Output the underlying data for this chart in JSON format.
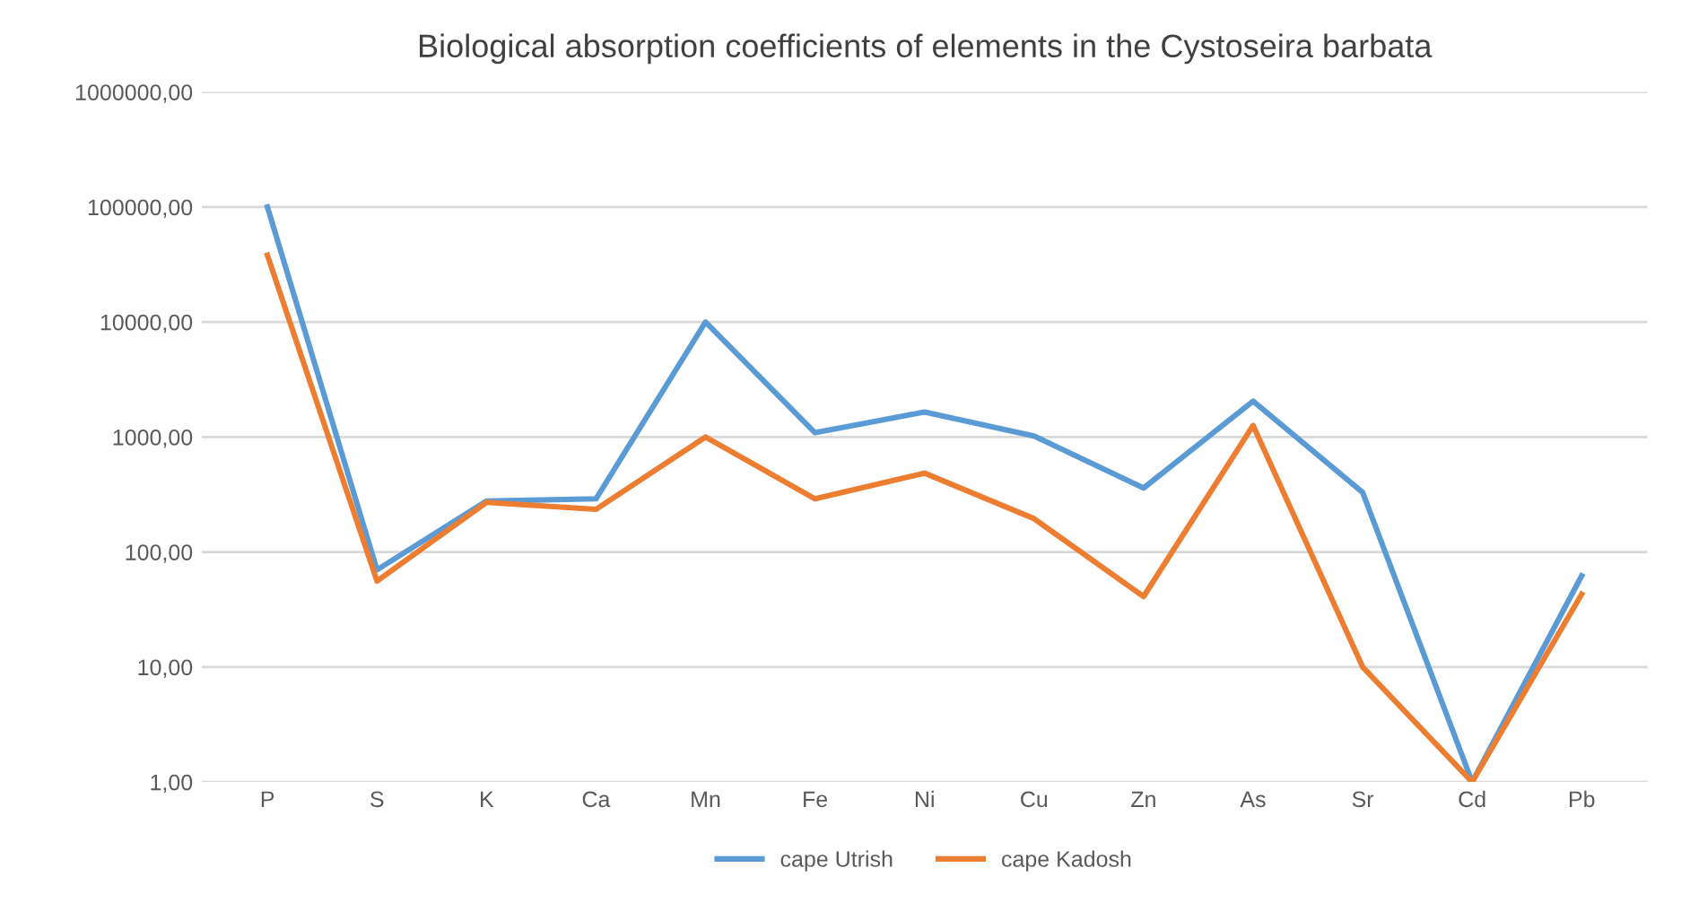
{
  "chart_data": {
    "type": "line",
    "title": "Biological absorption coefficients of elements in the Cystoseira barbata",
    "categories": [
      "P",
      "S",
      "K",
      "Ca",
      "Mn",
      "Fe",
      "Ni",
      "Cu",
      "Zn",
      "As",
      "Sr",
      "Cd",
      "Pb"
    ],
    "series": [
      {
        "name": "cape Utrish",
        "color": "#5b9bd5",
        "values": [
          100000,
          70,
          277,
          290,
          10000,
          1090,
          1650,
          1020,
          360,
          2050,
          330,
          1,
          62
        ]
      },
      {
        "name": "cape Kadosh",
        "color": "#ed7d31",
        "values": [
          38000,
          56,
          270,
          235,
          1000,
          290,
          485,
          195,
          41,
          1260,
          10,
          1,
          43
        ]
      }
    ],
    "log": "y",
    "ylim": [
      1,
      1000000
    ],
    "yticks": [
      {
        "value": 1,
        "label": "1,00"
      },
      {
        "value": 10,
        "label": "10,00"
      },
      {
        "value": 100,
        "label": "100,00"
      },
      {
        "value": 1000,
        "label": "1000,00"
      },
      {
        "value": 10000,
        "label": "10000,00"
      },
      {
        "value": 100000,
        "label": "100000,00"
      },
      {
        "value": 1000000,
        "label": "1000000,00"
      }
    ],
    "grid": "y",
    "legend": "bottom",
    "marker": "none",
    "line_style": "solid"
  }
}
